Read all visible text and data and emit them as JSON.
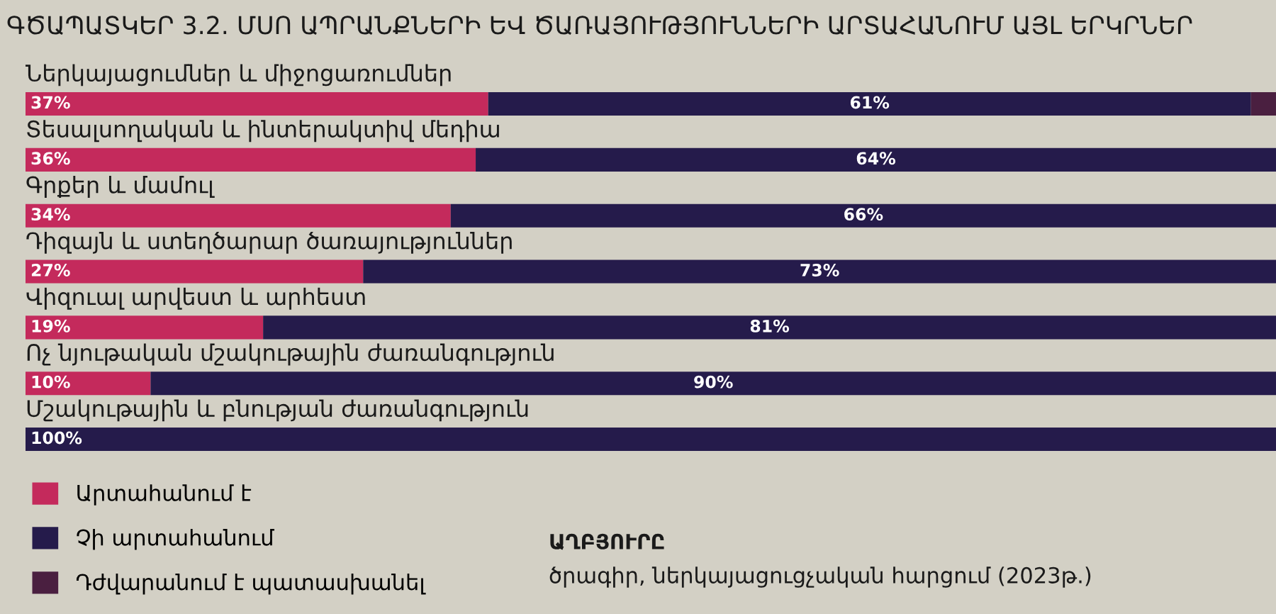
{
  "chart_data": {
    "type": "bar",
    "orientation": "horizontal",
    "stacked": true,
    "title": "ԳԾԱՊԱՏԿԵՐ 3.2. ՄՍՈ ԱՊՐԱՆՔՆԵՐԻ ԵՎ ԾԱՌԱՅՈՒԹՅՈՒՆՆԵՐԻ ԱՐՏԱՀԱՆՈՒՄ ԱՅԼ ԵՐԿՐՆԵՐ",
    "categories": [
      "Ներկայացումներ և միջոցառումներ",
      "Տեսալսողական և ինտերակտիվ մեդիա",
      "Գրքեր և մամուլ",
      "Դիզայն և ստեղծարար ծառայություններ",
      "Վիզուալ արվեստ և արհեստ",
      "Ոչ նյութական մշակութային ժառանգություն",
      "Մշակութային և բնության ժառանգություն"
    ],
    "series": [
      {
        "name": "Արտահանում է",
        "color": "#c42a5c",
        "values": [
          37,
          36,
          34,
          27,
          19,
          10,
          0
        ],
        "value_labels": [
          "37%",
          "36%",
          "34%",
          "27%",
          "19%",
          "10%",
          null
        ]
      },
      {
        "name": "Չի արտահանում",
        "color": "#251b4b",
        "values": [
          61,
          64,
          66,
          73,
          81,
          90,
          100
        ],
        "value_labels": [
          "61%",
          "64%",
          "66%",
          "73%",
          "81%",
          "90%",
          "100%"
        ]
      },
      {
        "name": "Դժվարանում է պատասխանել",
        "color": "#4a1f40",
        "values": [
          2,
          0,
          0,
          0,
          0,
          0,
          0
        ],
        "value_labels": [
          null,
          null,
          null,
          null,
          null,
          null,
          null
        ]
      }
    ],
    "legend": "bottom left",
    "annotations": [
      "ԱՂԲՅՈՒՐԸ",
      "ծրագիր, ներկայացուցչական հարցում (2023թ.)"
    ]
  }
}
